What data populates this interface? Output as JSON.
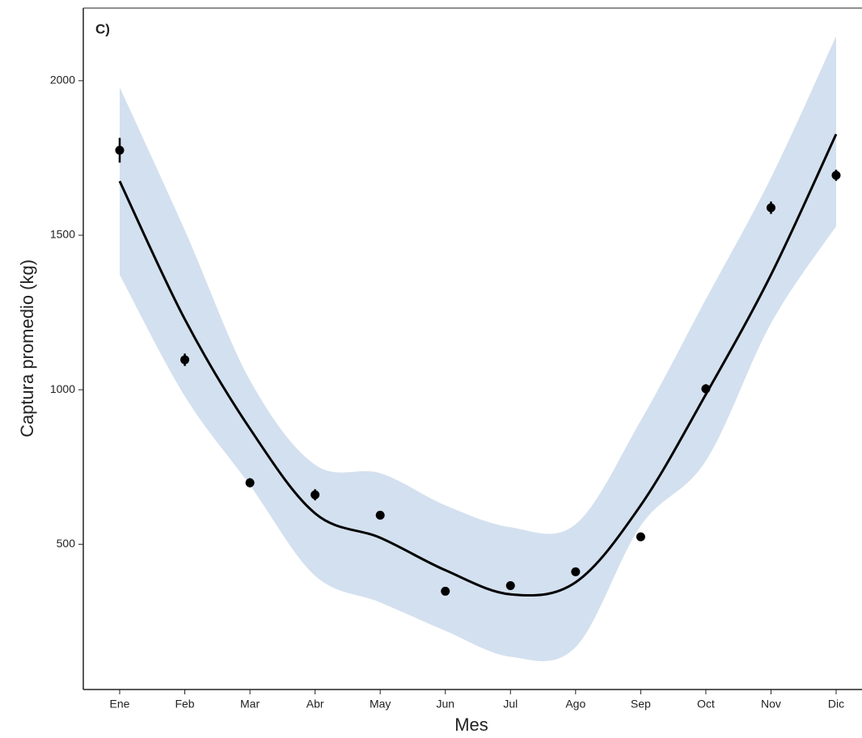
{
  "chart_data": {
    "type": "scatter",
    "panel_label": "C)",
    "x_label": "Mes",
    "y_label": "Captura promedio (kg)",
    "categories": [
      "Ene",
      "Feb",
      "Mar",
      "Abr",
      "May",
      "Jun",
      "Jul",
      "Ago",
      "Sep",
      "Oct",
      "Nov",
      "Dic"
    ],
    "ylim": [
      30,
      2235
    ],
    "yticks": [
      500,
      1000,
      1500,
      2000
    ],
    "points": {
      "color": "#000000",
      "values": [
        1775,
        1097,
        699,
        660,
        594,
        348,
        366,
        411,
        524,
        1003,
        1589,
        1694
      ],
      "errors": [
        40,
        20,
        15,
        18,
        10,
        5,
        5,
        5,
        5,
        15,
        20,
        18
      ]
    },
    "fit": {
      "color": "#000000",
      "values": [
        1675,
        1228,
        874,
        600,
        521,
        416,
        338,
        377,
        626,
        985,
        1372,
        1827
      ]
    },
    "band": {
      "color": "#d3e0ef",
      "upper": [
        1979,
        1516,
        1031,
        757,
        730,
        626,
        555,
        565,
        900,
        1293,
        1686,
        2144
      ],
      "lower": [
        1372,
        979,
        691,
        398,
        312,
        220,
        136,
        167,
        560,
        770,
        1215,
        1529
      ]
    }
  }
}
